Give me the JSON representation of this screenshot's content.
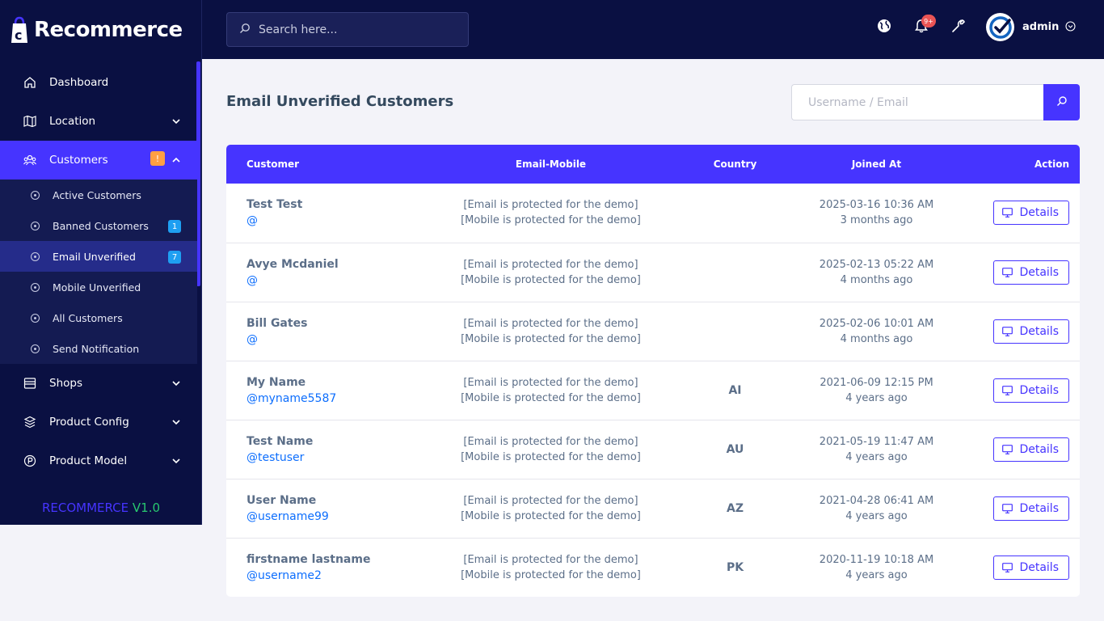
{
  "brand": {
    "name": "Recommerce"
  },
  "topbar": {
    "search_placeholder": "Search here...",
    "notification_count": "9+",
    "user_name": "admin"
  },
  "sidebar": {
    "items": [
      {
        "label": "Dashboard",
        "icon": "home-icon"
      },
      {
        "label": "Location",
        "icon": "map-icon"
      },
      {
        "label": "Customers",
        "icon": "users-icon",
        "badge": "!"
      },
      {
        "label": "Shops",
        "icon": "store-icon"
      },
      {
        "label": "Product Config",
        "icon": "layers-icon"
      },
      {
        "label": "Product Model",
        "icon": "p-circle-icon"
      }
    ],
    "submenu": [
      {
        "label": "Active Customers"
      },
      {
        "label": "Banned Customers",
        "count": "1"
      },
      {
        "label": "Email Unverified",
        "count": "7"
      },
      {
        "label": "Mobile Unverified"
      },
      {
        "label": "All Customers"
      },
      {
        "label": "Send Notification"
      }
    ],
    "version_name": "RECOMMERCE",
    "version_number": "V1.0"
  },
  "page": {
    "title": "Email Unverified Customers",
    "filter_placeholder": "Username / Email"
  },
  "table": {
    "headers": [
      "Customer",
      "Email-Mobile",
      "Country",
      "Joined At",
      "Action"
    ],
    "email_text": "[Email is protected for the demo]",
    "mobile_text": "[Mobile is protected for the demo]",
    "action_label": "Details",
    "rows": [
      {
        "name": "Test Test",
        "username": "@",
        "country": "",
        "joined": "2025-03-16 10:36 AM",
        "ago": "3 months ago"
      },
      {
        "name": "Avye Mcdaniel",
        "username": "@",
        "country": "",
        "joined": "2025-02-13 05:22 AM",
        "ago": "4 months ago"
      },
      {
        "name": "Bill Gates",
        "username": "@",
        "country": "",
        "joined": "2025-02-06 10:01 AM",
        "ago": "4 months ago"
      },
      {
        "name": "My Name",
        "username": "@myname5587",
        "country": "AI",
        "joined": "2021-06-09 12:15 PM",
        "ago": "4 years ago"
      },
      {
        "name": "Test Name",
        "username": "@testuser",
        "country": "AU",
        "joined": "2021-05-19 11:47 AM",
        "ago": "4 years ago"
      },
      {
        "name": "User Name",
        "username": "@username99",
        "country": "AZ",
        "joined": "2021-04-28 06:41 AM",
        "ago": "4 years ago"
      },
      {
        "name": "firstname lastname",
        "username": "@username2",
        "country": "PK",
        "joined": "2020-11-19 10:18 AM",
        "ago": "4 years ago"
      }
    ]
  },
  "colors": {
    "sidebar_bg": "#0a1042",
    "accent": "#4634ff",
    "link": "#0d6efd",
    "warning": "#ff9f43",
    "info": "#1e9ff2",
    "success": "#28c76f"
  }
}
